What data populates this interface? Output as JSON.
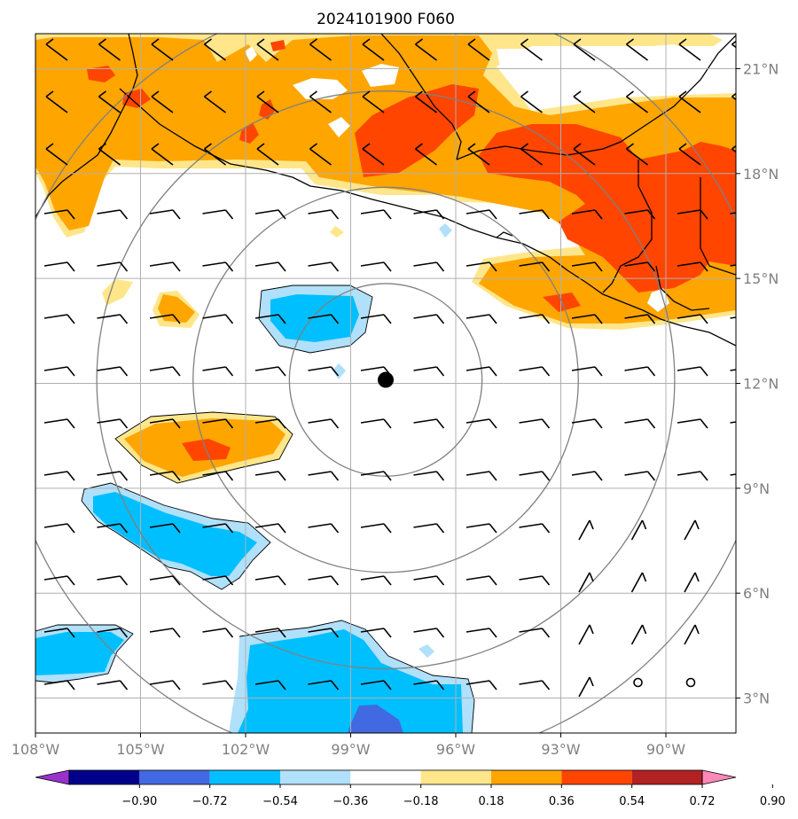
{
  "title": "2024101900 F060",
  "map": {
    "lon_range": [
      -108.0,
      -88.0
    ],
    "lat_range": [
      2.0,
      22.0
    ],
    "lon_ticks": [
      {
        "value": -108,
        "label": "108°W"
      },
      {
        "value": -105,
        "label": "105°W"
      },
      {
        "value": -102,
        "label": "102°W"
      },
      {
        "value": -99,
        "label": "99°W"
      },
      {
        "value": -96,
        "label": "96°W"
      },
      {
        "value": -93,
        "label": "93°W"
      },
      {
        "value": -90,
        "label": "90°W"
      }
    ],
    "lat_ticks": [
      {
        "value": 21,
        "label": "21°N"
      },
      {
        "value": 18,
        "label": "18°N"
      },
      {
        "value": 15,
        "label": "15°N"
      },
      {
        "value": 12,
        "label": "12°N"
      },
      {
        "value": 9,
        "label": "9°N"
      },
      {
        "value": 6,
        "label": "6°N"
      },
      {
        "value": 3,
        "label": "3°N"
      }
    ],
    "center_marker": {
      "lon": -98.0,
      "lat": 12.1
    },
    "range_rings_deg": [
      2.75,
      5.5,
      8.25,
      11.0
    ],
    "grid": true
  },
  "colorbar": {
    "labels": [
      "−0.90",
      "−0.72",
      "−0.54",
      "−0.36",
      "−0.18",
      "0.18",
      "0.36",
      "0.54",
      "0.72",
      "0.90"
    ],
    "colors": [
      "#9932cc",
      "#00008b",
      "#4169e1",
      "#00bfff",
      "#b0e0fa",
      "#ffffff",
      "#ffe68a",
      "#ffa500",
      "#ff4500",
      "#b22222",
      "#ff88b8"
    ]
  }
}
